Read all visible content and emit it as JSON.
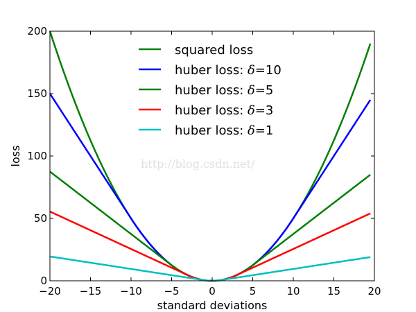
{
  "chart_data": {
    "type": "line",
    "title": "",
    "xlabel": "standard deviations",
    "ylabel": "loss",
    "xlim": [
      -20,
      20
    ],
    "ylim": [
      0,
      200
    ],
    "xticks": [
      -20,
      -15,
      -10,
      -5,
      0,
      5,
      10,
      15,
      20
    ],
    "xtick_labels": [
      "−20",
      "−15",
      "−10",
      "−5",
      "0",
      "5",
      "10",
      "15",
      "20"
    ],
    "yticks": [
      0,
      50,
      100,
      150,
      200
    ],
    "ytick_labels": [
      "0",
      "50",
      "100",
      "150",
      "200"
    ],
    "x_range": [
      -20,
      19.5
    ],
    "grid": false,
    "legend_position": "upper-center",
    "series": [
      {
        "name": "squared loss",
        "label_prefix": "squared loss",
        "label_symbol": "",
        "label_value": "",
        "color": "#008000",
        "kind": "squared"
      },
      {
        "name": "huber loss: δ=10",
        "label_prefix": "huber loss: ",
        "label_symbol": "δ",
        "label_value": "=10",
        "color": "#0000ff",
        "kind": "huber",
        "delta": 10
      },
      {
        "name": "huber loss: δ=5",
        "label_prefix": "huber loss: ",
        "label_symbol": "δ",
        "label_value": "=5",
        "color": "#008000",
        "kind": "huber",
        "delta": 5
      },
      {
        "name": "huber loss: δ=3",
        "label_prefix": "huber loss: ",
        "label_symbol": "δ",
        "label_value": "=3",
        "color": "#ff0000",
        "kind": "huber",
        "delta": 3
      },
      {
        "name": "huber loss: δ=1",
        "label_prefix": "huber loss: ",
        "label_symbol": "δ",
        "label_value": "=1",
        "color": "#00bfbf",
        "kind": "huber",
        "delta": 1
      }
    ]
  },
  "watermark": "http://blog.csdn.net/"
}
